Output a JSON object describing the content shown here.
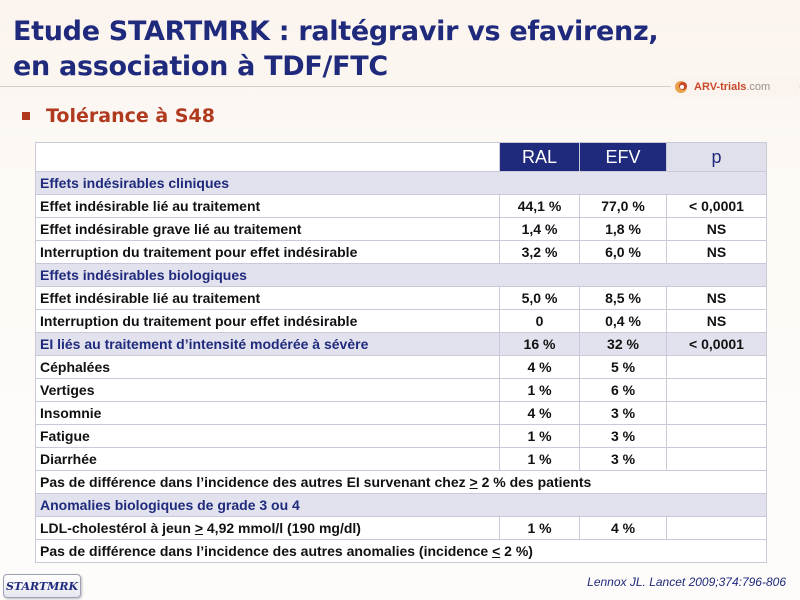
{
  "title": {
    "line1": "Etude STARTMRK : raltégravir vs efavirenz,",
    "line2": "en association à TDF/FTC"
  },
  "logo": {
    "brand": "ARV-trials",
    "suffix": ".com"
  },
  "subtitle": "Tolérance à S48",
  "table": {
    "headers": {
      "ral": "RAL",
      "efv": "EFV",
      "p": "p"
    },
    "sections": {
      "clinical": "Effets indésirables cliniques",
      "biological": "Effets indésirables biologiques",
      "grade3": "Anomalies biologiques de grade 3 ou 4"
    },
    "clinical_rows": [
      {
        "label": "Effet indésirable lié au traitement",
        "ral": "44,1 %",
        "efv": "77,0 %",
        "p": "< 0,0001"
      },
      {
        "label": "Effet indésirable grave lié au traitement",
        "ral": "1,4 %",
        "efv": "1,8 %",
        "p": "NS"
      },
      {
        "label": "Interruption du traitement pour effet indésirable",
        "ral": "3,2 %",
        "efv": "6,0 %",
        "p": "NS"
      }
    ],
    "biological_rows": [
      {
        "label": "Effet indésirable lié au traitement",
        "ral": "5,0 %",
        "efv": "8,5 %",
        "p": "NS"
      },
      {
        "label": "Interruption du traitement pour effet indésirable",
        "ral": "0",
        "efv": "0,4 %",
        "p": "NS"
      }
    ],
    "ei_row": {
      "label": "EI liés au traitement d’intensité modérée à sévère",
      "ral": "16 %",
      "efv": "32 %",
      "p": "< 0,0001"
    },
    "ei_sub_rows": [
      {
        "label": "Céphalées",
        "ral": "4 %",
        "efv": "5 %",
        "p": ""
      },
      {
        "label": "Vertiges",
        "ral": "1 %",
        "efv": "6 %",
        "p": ""
      },
      {
        "label": "Insomnie",
        "ral": "4 %",
        "efv": "3 %",
        "p": ""
      },
      {
        "label": "Fatigue",
        "ral": "1 %",
        "efv": "3 %",
        "p": ""
      },
      {
        "label": "Diarrhée",
        "ral": "1 %",
        "efv": "3 %",
        "p": ""
      }
    ],
    "note1": {
      "before": "Pas de différence dans l’incidence des autres EI survenant chez ",
      "symbol": ">",
      "after": " 2 % des patients"
    },
    "ldl_row": {
      "before": "LDL-cholestérol à jeun ",
      "symbol": ">",
      "after": " 4,92 mmol/l (190 mg/dl)",
      "ral": "1 %",
      "efv": "4 %",
      "p": ""
    },
    "note2": {
      "before": "Pas de différence dans l’incidence des autres anomalies (incidence ",
      "symbol": "<",
      "after": " 2 %)"
    }
  },
  "badge": "STARTMRK",
  "reference": "Lennox JL. Lancet 2009;374:796-806",
  "colors": {
    "title": "#1f2a7c",
    "accent": "#b0391e",
    "header_bg": "#1f2a7c",
    "section_bg": "#e2e2ee"
  }
}
